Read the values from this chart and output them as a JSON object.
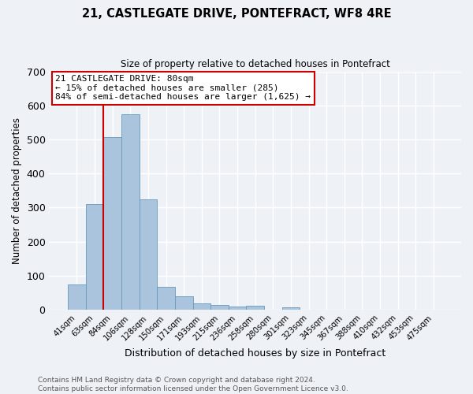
{
  "title": "21, CASTLEGATE DRIVE, PONTEFRACT, WF8 4RE",
  "subtitle": "Size of property relative to detached houses in Pontefract",
  "xlabel": "Distribution of detached houses by size in Pontefract",
  "ylabel": "Number of detached properties",
  "bar_labels": [
    "41sqm",
    "63sqm",
    "84sqm",
    "106sqm",
    "128sqm",
    "150sqm",
    "171sqm",
    "193sqm",
    "215sqm",
    "236sqm",
    "258sqm",
    "280sqm",
    "301sqm",
    "323sqm",
    "345sqm",
    "367sqm",
    "388sqm",
    "410sqm",
    "432sqm",
    "453sqm",
    "475sqm"
  ],
  "bar_values": [
    74,
    311,
    506,
    573,
    325,
    67,
    40,
    19,
    15,
    10,
    12,
    0,
    7,
    0,
    0,
    0,
    0,
    0,
    0,
    0,
    0
  ],
  "bar_color": "#aac4dd",
  "bar_edge_color": "#6699bb",
  "background_color": "#eef2f7",
  "grid_color": "#ffffff",
  "vline_color": "#cc0000",
  "ylim": [
    0,
    700
  ],
  "yticks": [
    0,
    100,
    200,
    300,
    400,
    500,
    600,
    700
  ],
  "annotation_title": "21 CASTLEGATE DRIVE: 80sqm",
  "annotation_line1": "← 15% of detached houses are smaller (285)",
  "annotation_line2": "84% of semi-detached houses are larger (1,625) →",
  "annotation_box_edge": "#cc0000",
  "footer1": "Contains HM Land Registry data © Crown copyright and database right 2024.",
  "footer2": "Contains public sector information licensed under the Open Government Licence v3.0."
}
